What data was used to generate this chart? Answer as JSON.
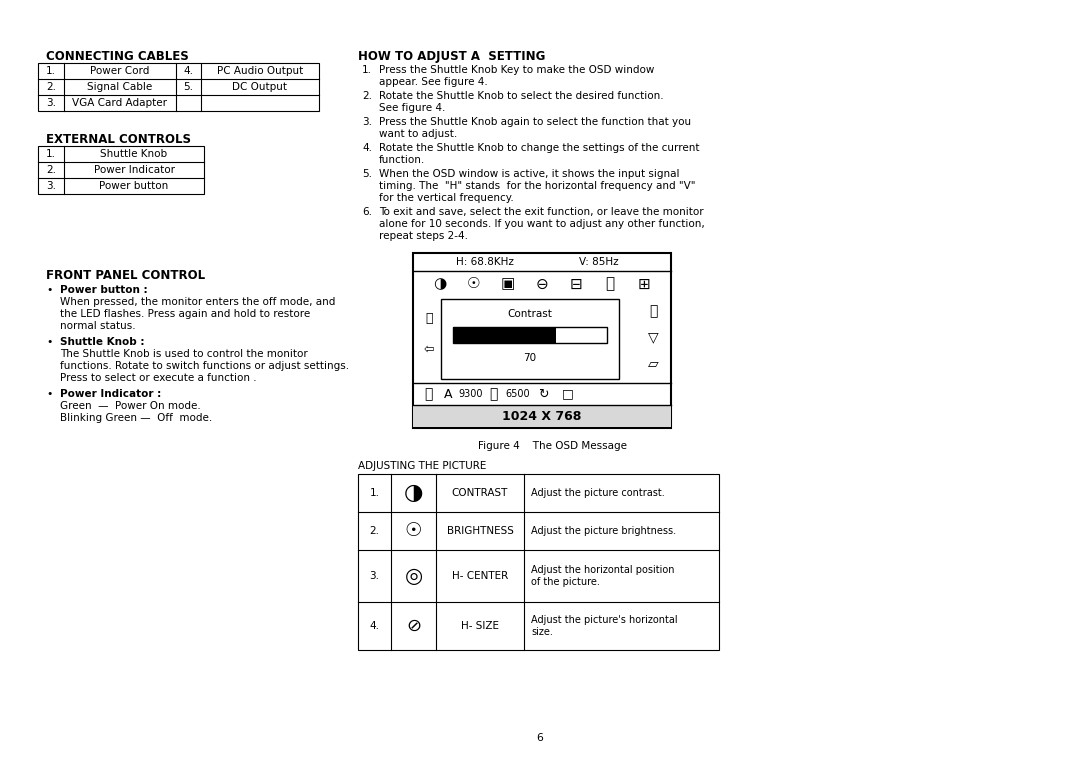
{
  "bg_color": "#ffffff",
  "page_number": "6",
  "connecting_cables_title": "CONNECTING CABLES",
  "connecting_cables_rows": [
    [
      "1.",
      "Power Cord",
      "4.",
      "PC Audio Output"
    ],
    [
      "2.",
      "Signal Cable",
      "5.",
      "DC Output"
    ],
    [
      "3.",
      "VGA Card Adapter",
      "",
      ""
    ]
  ],
  "external_controls_title": "EXTERNAL CONTROLS",
  "external_controls_rows": [
    [
      "1.",
      "Shuttle Knob"
    ],
    [
      "2.",
      "Power Indicator"
    ],
    [
      "3.",
      "Power button"
    ]
  ],
  "front_panel_title": "FRONT PANEL CONTROL",
  "front_panel_bullets": [
    {
      "heading": "Power button :",
      "text": "When pressed, the monitor enters the off mode, and\nthe LED flashes. Press again and hold to restore\nnormal status."
    },
    {
      "heading": "Shuttle Knob :",
      "text": "The Shuttle Knob is used to control the monitor\nfunctions. Rotate to switch functions or adjust settings.\nPress to select or execute a function ."
    },
    {
      "heading": "Power Indicator :",
      "text": "Green  —  Power On mode.\nBlinking Green —  Off  mode."
    }
  ],
  "how_to_adjust_title": "HOW TO ADJUST A  SETTING",
  "how_to_adjust_steps": [
    [
      "Press the Shuttle Knob Key to make the OSD window",
      "appear. See figure 4."
    ],
    [
      "Rotate the Shuttle Knob to select the desired function.",
      "See figure 4."
    ],
    [
      "Press the Shuttle Knob again to select the function that you",
      "want to adjust."
    ],
    [
      "Rotate the Shuttle Knob to change the settings of the current",
      "function."
    ],
    [
      "When the OSD window is active, it shows the input signal",
      "timing. The  \"H\" stands  for the horizontal frequency and \"V\"",
      "for the vertical frequency."
    ],
    [
      "To exit and save, select the exit function, or leave the monitor",
      "alone for 10 seconds. If you want to adjust any other function,",
      "repeat steps 2-4."
    ]
  ],
  "osd_h_freq": "H: 68.8KHz",
  "osd_v_freq": "V: 85Hz",
  "osd_label": "Contrast",
  "osd_value": "70",
  "osd_color1": "9300",
  "osd_color2": "6500",
  "osd_resolution": "1024 X 768",
  "fig_caption": "Figure 4    The OSD Message",
  "adjusting_title": "ADJUSTING THE PICTURE",
  "adjusting_rows": [
    [
      "1.",
      "CONTRAST",
      "Adjust the picture contrast."
    ],
    [
      "2.",
      "BRIGHTNESS",
      "Adjust the picture brightness."
    ],
    [
      "3.",
      "H- CENTER",
      "Adjust the horizontal position\nof the picture."
    ],
    [
      "4.",
      "H- SIZE",
      "Adjust the picture's horizontal\nsize."
    ]
  ]
}
